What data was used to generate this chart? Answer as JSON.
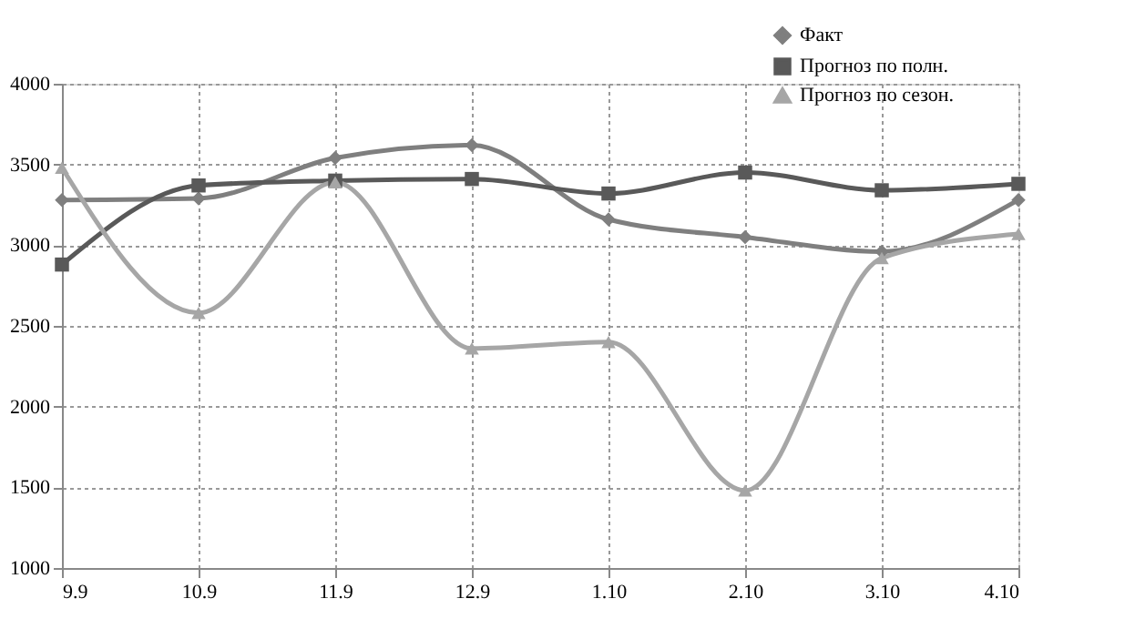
{
  "chart_data": {
    "type": "line",
    "categories": [
      "9.9",
      "10.9",
      "11.9",
      "12.9",
      "1.10",
      "2.10",
      "3.10",
      "4.10"
    ],
    "series": [
      {
        "name": "Факт",
        "color": "#7f7f7f",
        "marker": "diamond",
        "values": [
          3280,
          3290,
          3540,
          3620,
          3160,
          3050,
          2960,
          3280
        ]
      },
      {
        "name": "Прогноз по полн.",
        "color": "#595959",
        "marker": "square",
        "values": [
          2880,
          3370,
          3400,
          3410,
          3320,
          3450,
          3340,
          3380
        ]
      },
      {
        "name": "Прогноз по сезон.",
        "color": "#a6a6a6",
        "marker": "triangle",
        "values": [
          3480,
          2580,
          3390,
          2360,
          2400,
          1480,
          2920,
          3070
        ]
      }
    ],
    "ylim": [
      1000,
      4000
    ],
    "yticks": [
      1000,
      1500,
      2000,
      2500,
      3000,
      3500,
      4000
    ],
    "grid": true,
    "legend": "top right",
    "line_style": "solid"
  }
}
